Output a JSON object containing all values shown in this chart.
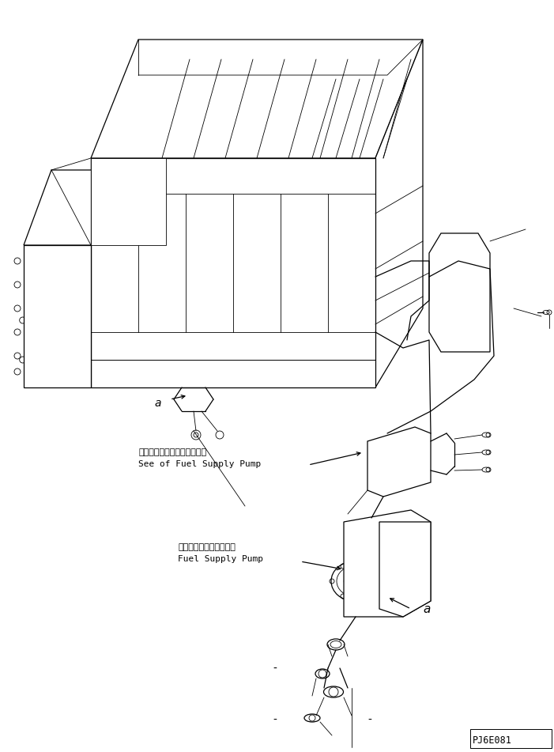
{
  "background_color": "#ffffff",
  "line_color": "#000000",
  "text_color": "#000000",
  "label1_jp": "フェエルサプライポンプ参照",
  "label1_en": "See of Fuel Supply Pump",
  "label2_jp": "フェエルサプライポンプ",
  "label2_en": "Fuel Supply Pump",
  "part_id": "PJ6E081",
  "marker_a": "a",
  "fig_width": 7.01,
  "fig_height": 9.51,
  "dpi": 100
}
